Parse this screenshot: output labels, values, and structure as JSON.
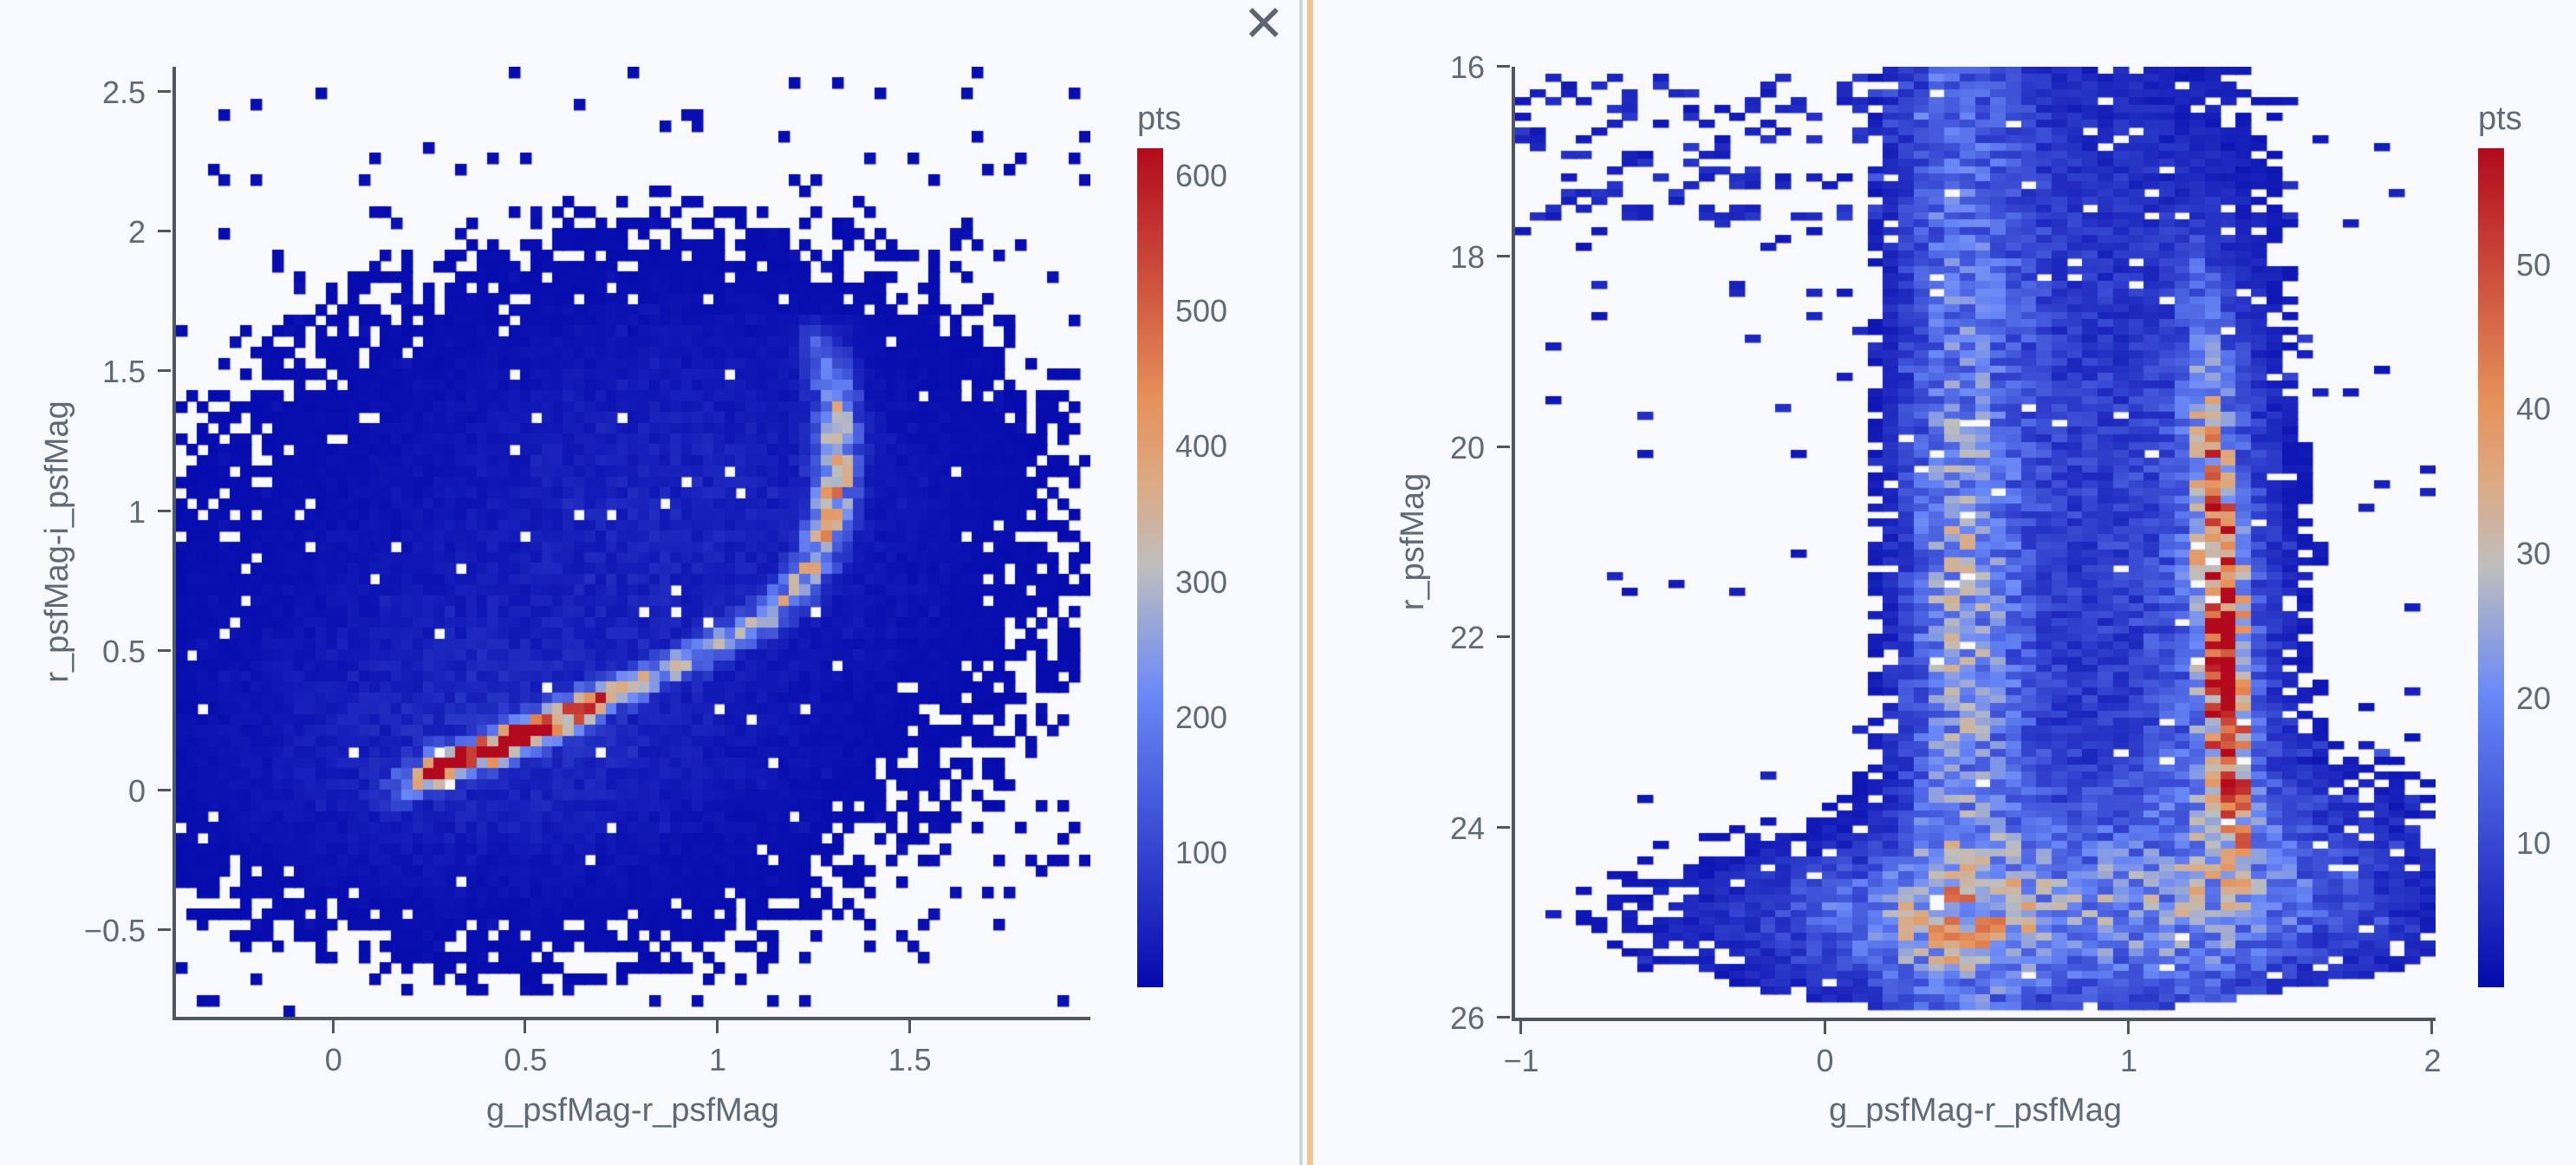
{
  "app": {
    "background": "#f8f9fc",
    "text_color": "#5e6a76",
    "axis_color": "#4f565e",
    "close_label": "Close panel"
  },
  "divider": {
    "rail_color": "#ccd4dd",
    "handle_color": "#f4c492"
  },
  "colorscale": [
    [
      0,
      "#050aac"
    ],
    [
      0.35,
      "#6a89f7"
    ],
    [
      0.5,
      "#bebebe"
    ],
    [
      0.6,
      "#dcaa84"
    ],
    [
      0.7,
      "#e6915a"
    ],
    [
      1,
      "#b20a1c"
    ]
  ],
  "chart_data": [
    {
      "type": "heatmap",
      "xlabel": "g_psfMag-r_psfMag",
      "ylabel": "r_psfMag-i_psfMag",
      "xlim": [
        -0.41,
        1.97
      ],
      "ytop": 2.59,
      "ybot": -0.81,
      "grid": false,
      "xticks": [
        {
          "v": 0,
          "label": "0"
        },
        {
          "v": 0.5,
          "label": "0.5"
        },
        {
          "v": 1,
          "label": "1"
        },
        {
          "v": 1.5,
          "label": "1.5"
        }
      ],
      "yticks": [
        {
          "v": 2.5,
          "label": "2.5"
        },
        {
          "v": 2,
          "label": "2"
        },
        {
          "v": 1.5,
          "label": "1.5"
        },
        {
          "v": 1,
          "label": "1"
        },
        {
          "v": 0.5,
          "label": "0.5"
        },
        {
          "v": 0,
          "label": "0"
        },
        {
          "v": -0.5,
          "label": "−0.5"
        }
      ],
      "colorbar": {
        "title": "pts",
        "cmax": 620,
        "ticks": [
          {
            "v": 600,
            "label": "600"
          },
          {
            "v": 500,
            "label": "500"
          },
          {
            "v": 400,
            "label": "400"
          },
          {
            "v": 300,
            "label": "300"
          },
          {
            "v": 200,
            "label": "200"
          },
          {
            "v": 100,
            "label": "100"
          }
        ]
      },
      "bins": [
        85,
        88
      ],
      "seed": 11,
      "threshold": 3,
      "edge_drop": 0.3,
      "hole_prob": 0.013,
      "density_model": [
        {
          "kind": "gauss",
          "cx": 0.38,
          "cy": 0.16,
          "sx": 0.4,
          "sy": 0.3,
          "amp": 40
        },
        {
          "kind": "gauss",
          "cx": 0.95,
          "cy": 1.08,
          "sx": 0.42,
          "sy": 0.42,
          "amp": 30
        },
        {
          "kind": "gauss",
          "cx": 0.6,
          "cy": 0.6,
          "sx": 0.65,
          "sy": 0.65,
          "amp": 16
        },
        {
          "kind": "curve",
          "sx": 0.035,
          "sy": 0.035,
          "points": [
            [
              0.16,
              -0.01,
              80
            ],
            [
              0.24,
              0.05,
              350
            ],
            [
              0.3,
              0.09,
              620
            ],
            [
              0.36,
              0.12,
              580
            ],
            [
              0.43,
              0.16,
              660
            ],
            [
              0.5,
              0.2,
              560
            ],
            [
              0.57,
              0.24,
              630
            ],
            [
              0.64,
              0.29,
              450
            ],
            [
              0.72,
              0.34,
              350
            ],
            [
              0.82,
              0.4,
              280
            ],
            [
              0.92,
              0.46,
              250
            ],
            [
              1.02,
              0.53,
              235
            ],
            [
              1.12,
              0.61,
              235
            ],
            [
              1.2,
              0.71,
              250
            ],
            [
              1.26,
              0.83,
              280
            ],
            [
              1.29,
              0.96,
              310
            ],
            [
              1.31,
              1.1,
              330
            ],
            [
              1.315,
              1.25,
              300
            ],
            [
              1.31,
              1.4,
              250
            ],
            [
              1.29,
              1.52,
              180
            ],
            [
              1.27,
              1.62,
              110
            ]
          ]
        },
        {
          "kind": "scatter",
          "x0": -0.41,
          "x1": 1.97,
          "y0": -0.81,
          "y1": 2.59,
          "prob": 0.06,
          "amp": 6
        }
      ]
    },
    {
      "type": "heatmap",
      "xlabel": "g_psfMag-r_psfMag",
      "ylabel": "r_psfMag",
      "xlim": [
        -1.02,
        2.01
      ],
      "ytop": 16,
      "ybot": 26,
      "grid": false,
      "xticks": [
        {
          "v": -1,
          "label": "−1"
        },
        {
          "v": 0,
          "label": "0"
        },
        {
          "v": 1,
          "label": "1"
        },
        {
          "v": 2,
          "label": "2"
        }
      ],
      "yticks": [
        {
          "v": 16,
          "label": "16"
        },
        {
          "v": 18,
          "label": "18"
        },
        {
          "v": 20,
          "label": "20"
        },
        {
          "v": 22,
          "label": "22"
        },
        {
          "v": 24,
          "label": "24"
        },
        {
          "v": 26,
          "label": "26"
        }
      ],
      "colorbar": {
        "title": "pts",
        "cmax": 58,
        "ticks": [
          {
            "v": 50,
            "label": "50"
          },
          {
            "v": 40,
            "label": "40"
          },
          {
            "v": 30,
            "label": "30"
          },
          {
            "v": 20,
            "label": "20"
          },
          {
            "v": 10,
            "label": "10"
          }
        ]
      },
      "bins": [
        60,
        124
      ],
      "seed": 29,
      "threshold": 1.8,
      "edge_drop": 0.28,
      "hole_prob": 0.02,
      "clip": {
        "a": 25.95,
        "b": 0.3,
        "cx": 0.65
      },
      "density_model": [
        {
          "kind": "gauss",
          "cx": 0.36,
          "cy": 22.0,
          "sx": 0.11,
          "sy": 5.0,
          "amp": 10
        },
        {
          "kind": "gauss",
          "cx": 0.57,
          "cy": 22.0,
          "sx": 0.11,
          "sy": 5.0,
          "amp": 9
        },
        {
          "kind": "gauss",
          "cx": 0.45,
          "cy": 17.0,
          "sx": 0.16,
          "sy": 1.2,
          "amp": 5
        },
        {
          "kind": "gauss",
          "cx": 0.44,
          "cy": 21.6,
          "sx": 0.085,
          "sy": 2.0,
          "amp": 10
        },
        {
          "kind": "gauss",
          "cx": 0.92,
          "cy": 20.5,
          "sx": 0.3,
          "sy": 4.2,
          "amp": 8
        },
        {
          "kind": "gauss",
          "cx": 1.3,
          "cy": 21.9,
          "sx": 0.14,
          "sy": 2.4,
          "amp": 13
        },
        {
          "kind": "curve",
          "sx": 0.045,
          "sy": 0.28,
          "points": [
            [
              1.235,
              18.1,
              5
            ],
            [
              1.25,
              18.9,
              10
            ],
            [
              1.27,
              19.7,
              20
            ],
            [
              1.285,
              20.4,
              28
            ],
            [
              1.295,
              21.0,
              36
            ],
            [
              1.305,
              21.5,
              46
            ],
            [
              1.315,
              22.0,
              54
            ],
            [
              1.32,
              22.4,
              50
            ],
            [
              1.325,
              22.9,
              46
            ],
            [
              1.335,
              23.3,
              40
            ],
            [
              1.345,
              23.7,
              28
            ],
            [
              1.36,
              24.1,
              16
            ]
          ]
        },
        {
          "kind": "gauss",
          "cx": 0.68,
          "cy": 25.0,
          "sx": 0.72,
          "sy": 0.6,
          "amp": 13
        },
        {
          "kind": "gauss",
          "cx": 0.3,
          "cy": 24.9,
          "sx": 0.3,
          "sy": 0.45,
          "amp": 7
        },
        {
          "kind": "gauss",
          "cx": 1.38,
          "cy": 24.35,
          "sx": 0.4,
          "sy": 0.7,
          "amp": 9
        },
        {
          "kind": "scatter",
          "x0": -1.02,
          "x1": 0.45,
          "y0": 16.05,
          "y1": 17.6,
          "prob": 0.28,
          "amp": 4
        },
        {
          "kind": "scatter",
          "x0": -1.02,
          "x1": 0.3,
          "y0": 17.6,
          "y1": 19.8,
          "prob": 0.05,
          "amp": 3
        },
        {
          "kind": "scatter",
          "x0": -1.02,
          "x1": 0.2,
          "y0": 19.8,
          "y1": 25.8,
          "prob": 0.012,
          "amp": 3
        },
        {
          "kind": "scatter",
          "x0": 1.45,
          "x1": 2.01,
          "y0": 16.2,
          "y1": 25.2,
          "prob": 0.04,
          "amp": 3
        },
        {
          "kind": "scatter",
          "x0": 1.5,
          "x1": 1.95,
          "y0": 22.5,
          "y1": 25.0,
          "prob": 0.12,
          "amp": 3
        }
      ]
    }
  ]
}
